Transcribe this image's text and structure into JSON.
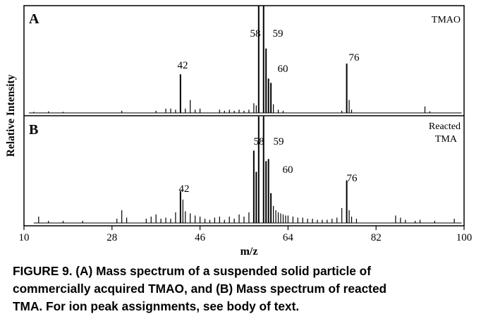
{
  "chart_data": {
    "type": "line",
    "xlabel": "m/z",
    "ylabel": "Relative Intensity",
    "xlim": [
      10,
      100
    ],
    "xticks": [
      10,
      28,
      46,
      64,
      82,
      100
    ],
    "ylim": [
      0,
      100
    ],
    "panels": [
      {
        "letter": "A",
        "sample_label": [
          "TMAO"
        ],
        "peaks": [
          {
            "x": 12,
            "y": 1
          },
          {
            "x": 15,
            "y": 1.5
          },
          {
            "x": 18,
            "y": 1
          },
          {
            "x": 30,
            "y": 2
          },
          {
            "x": 37,
            "y": 2
          },
          {
            "x": 39,
            "y": 4
          },
          {
            "x": 40,
            "y": 4
          },
          {
            "x": 41,
            "y": 3
          },
          {
            "x": 42,
            "y": 36
          },
          {
            "x": 43,
            "y": 4
          },
          {
            "x": 44,
            "y": 12
          },
          {
            "x": 45,
            "y": 3
          },
          {
            "x": 46,
            "y": 4
          },
          {
            "x": 50,
            "y": 3
          },
          {
            "x": 51,
            "y": 2
          },
          {
            "x": 52,
            "y": 3
          },
          {
            "x": 53,
            "y": 2
          },
          {
            "x": 54,
            "y": 3
          },
          {
            "x": 55,
            "y": 2
          },
          {
            "x": 56,
            "y": 3
          },
          {
            "x": 57,
            "y": 9
          },
          {
            "x": 57.5,
            "y": 7
          },
          {
            "x": 58,
            "y": 100
          },
          {
            "x": 59,
            "y": 100
          },
          {
            "x": 59.5,
            "y": 60
          },
          {
            "x": 60,
            "y": 32
          },
          {
            "x": 60.5,
            "y": 28
          },
          {
            "x": 61,
            "y": 8
          },
          {
            "x": 62,
            "y": 3
          },
          {
            "x": 63,
            "y": 2
          },
          {
            "x": 75,
            "y": 2
          },
          {
            "x": 76,
            "y": 46
          },
          {
            "x": 76.5,
            "y": 12
          },
          {
            "x": 77,
            "y": 3
          },
          {
            "x": 92,
            "y": 6
          },
          {
            "x": 93,
            "y": 1.5
          }
        ],
        "annotations": [
          "42",
          "58",
          "59",
          "60",
          "76"
        ]
      },
      {
        "letter": "B",
        "sample_label": [
          "Reacted",
          "TMA"
        ],
        "peaks": [
          {
            "x": 13,
            "y": 6
          },
          {
            "x": 15,
            "y": 2
          },
          {
            "x": 18,
            "y": 2
          },
          {
            "x": 22,
            "y": 2
          },
          {
            "x": 29,
            "y": 4
          },
          {
            "x": 30,
            "y": 12
          },
          {
            "x": 31,
            "y": 5
          },
          {
            "x": 35,
            "y": 4
          },
          {
            "x": 36,
            "y": 6
          },
          {
            "x": 37,
            "y": 8
          },
          {
            "x": 38,
            "y": 4
          },
          {
            "x": 39,
            "y": 5
          },
          {
            "x": 40,
            "y": 4
          },
          {
            "x": 41,
            "y": 10
          },
          {
            "x": 42,
            "y": 30
          },
          {
            "x": 42.5,
            "y": 22
          },
          {
            "x": 43,
            "y": 11
          },
          {
            "x": 44,
            "y": 9
          },
          {
            "x": 45,
            "y": 7
          },
          {
            "x": 46,
            "y": 6
          },
          {
            "x": 47,
            "y": 4
          },
          {
            "x": 48,
            "y": 3
          },
          {
            "x": 49,
            "y": 5
          },
          {
            "x": 50,
            "y": 6
          },
          {
            "x": 51,
            "y": 3
          },
          {
            "x": 52,
            "y": 6
          },
          {
            "x": 53,
            "y": 4
          },
          {
            "x": 54,
            "y": 8
          },
          {
            "x": 55,
            "y": 6
          },
          {
            "x": 56,
            "y": 10
          },
          {
            "x": 57,
            "y": 68
          },
          {
            "x": 57.5,
            "y": 48
          },
          {
            "x": 58,
            "y": 100
          },
          {
            "x": 59,
            "y": 100
          },
          {
            "x": 59.5,
            "y": 58
          },
          {
            "x": 60,
            "y": 60
          },
          {
            "x": 60.5,
            "y": 28
          },
          {
            "x": 61,
            "y": 16
          },
          {
            "x": 61.5,
            "y": 12
          },
          {
            "x": 62,
            "y": 10
          },
          {
            "x": 62.5,
            "y": 9
          },
          {
            "x": 63,
            "y": 8
          },
          {
            "x": 63.5,
            "y": 7
          },
          {
            "x": 64,
            "y": 7
          },
          {
            "x": 65,
            "y": 6
          },
          {
            "x": 66,
            "y": 5
          },
          {
            "x": 67,
            "y": 5
          },
          {
            "x": 68,
            "y": 4
          },
          {
            "x": 69,
            "y": 4
          },
          {
            "x": 70,
            "y": 3
          },
          {
            "x": 71,
            "y": 3
          },
          {
            "x": 72,
            "y": 3
          },
          {
            "x": 73,
            "y": 4
          },
          {
            "x": 74,
            "y": 5
          },
          {
            "x": 75,
            "y": 14
          },
          {
            "x": 76,
            "y": 40
          },
          {
            "x": 76.5,
            "y": 12
          },
          {
            "x": 77,
            "y": 6
          },
          {
            "x": 78,
            "y": 4
          },
          {
            "x": 86,
            "y": 7
          },
          {
            "x": 87,
            "y": 5
          },
          {
            "x": 88,
            "y": 3
          },
          {
            "x": 90,
            "y": 2
          },
          {
            "x": 91,
            "y": 3
          },
          {
            "x": 94,
            "y": 2
          },
          {
            "x": 98,
            "y": 4
          }
        ],
        "annotations": [
          "42",
          "58",
          "59",
          "60",
          "76"
        ]
      }
    ]
  },
  "caption": {
    "lines": [
      "FIGURE 9.  (A) Mass spectrum of a suspended solid particle of",
      "commercially acquired TMAO, and (B) Mass spectrum of reacted",
      "TMA. For ion peak assignments, see body of text."
    ]
  }
}
